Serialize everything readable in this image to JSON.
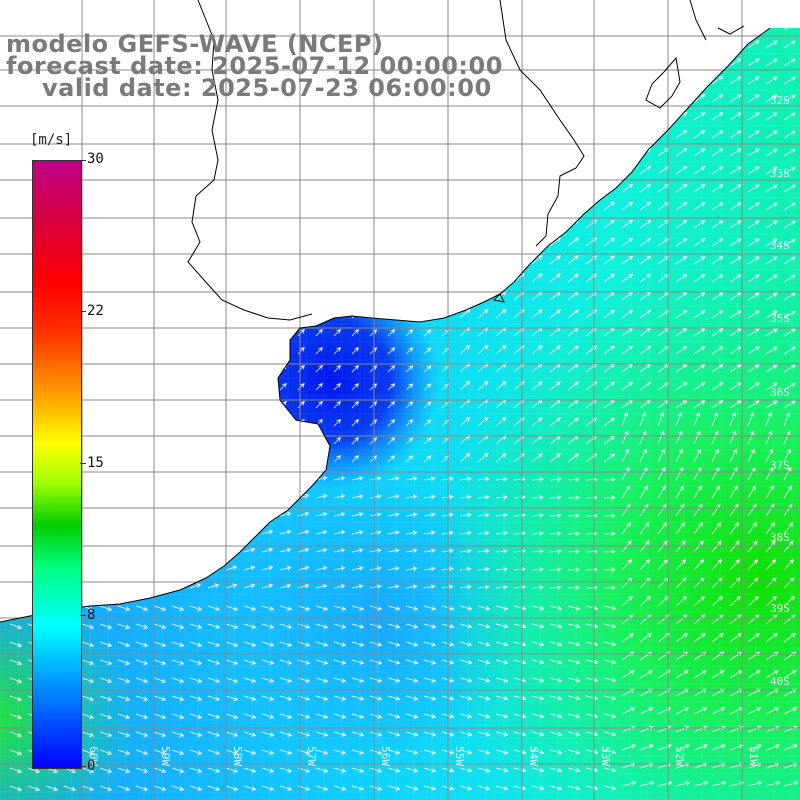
{
  "title": {
    "line1": "modelo GEFS-WAVE (NCEP)",
    "line2": "forecast date: 2025-07-12 00:00:00",
    "line3": "valid date: 2025-07-23 06:00:00"
  },
  "colorbar": {
    "unit": "[m/s]",
    "ticks": [
      "30",
      "22",
      "15",
      "8",
      "0"
    ],
    "tick_values": [
      30,
      22,
      15,
      8,
      0
    ],
    "min": 0,
    "max": 30
  },
  "map": {
    "lat_labels": [
      "32S",
      "33S",
      "34S",
      "35S",
      "36S",
      "37S",
      "38S",
      "39S",
      "40S"
    ],
    "lon_labels": [
      "60W",
      "59W",
      "58W",
      "57W",
      "56W",
      "55W",
      "54W",
      "53W",
      "52W",
      "51W"
    ],
    "land_color": "#ffffff",
    "grid_color": "#888888",
    "coast_color": "#000000",
    "arrow_color": "#ffffff"
  }
}
